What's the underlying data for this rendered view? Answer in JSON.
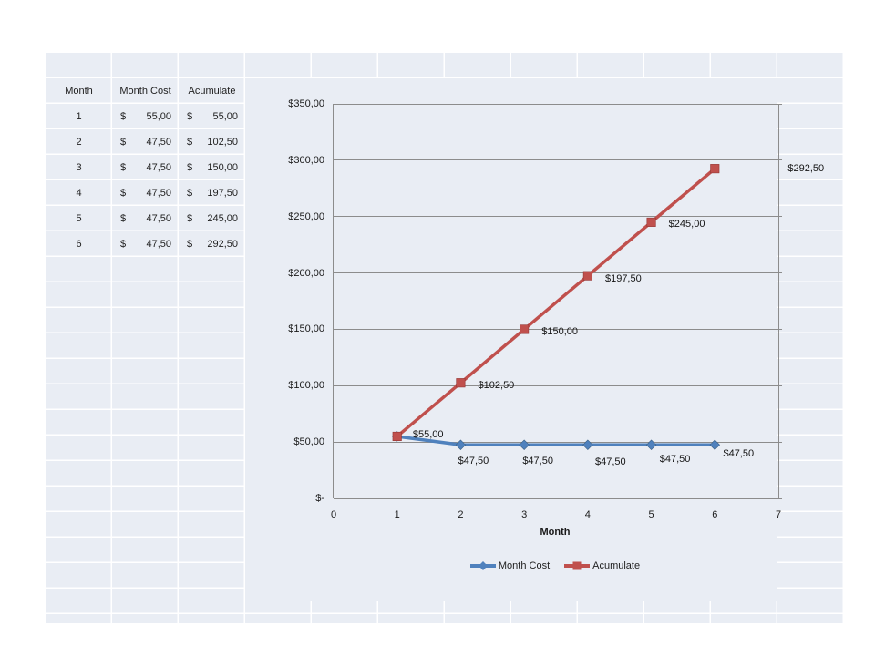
{
  "colors": {
    "sheet_background": "#e9edf4",
    "cell_gridline": "#ffffff",
    "chart_gridline": "#8c8c8c",
    "series_month_cost": "#4f81bd",
    "series_acumulate": "#c0504d",
    "text": "#1f1f1f"
  },
  "table": {
    "headers": [
      "Month",
      "Month Cost",
      "Acumulate"
    ],
    "rows": [
      [
        "1",
        "$",
        "55,00",
        "$",
        "55,00"
      ],
      [
        "2",
        "$",
        "47,50",
        "$",
        "102,50"
      ],
      [
        "3",
        "$",
        "47,50",
        "$",
        "150,00"
      ],
      [
        "4",
        "$",
        "47,50",
        "$",
        "197,50"
      ],
      [
        "5",
        "$",
        "47,50",
        "$",
        "245,00"
      ],
      [
        "6",
        "$",
        "47,50",
        "$",
        "292,50"
      ]
    ]
  },
  "chart_data": {
    "type": "line",
    "title": "",
    "xlabel": "Month",
    "ylabel": "",
    "xlim": [
      0,
      7
    ],
    "ylim": [
      0,
      350
    ],
    "grid": true,
    "legend_position": "bottom",
    "xticks": [
      "0",
      "1",
      "2",
      "3",
      "4",
      "5",
      "6",
      "7"
    ],
    "yticks": [
      {
        "value": 0,
        "label": "$-"
      },
      {
        "value": 50,
        "label": "$50,00"
      },
      {
        "value": 100,
        "label": "$100,00"
      },
      {
        "value": 150,
        "label": "$150,00"
      },
      {
        "value": 200,
        "label": "$200,00"
      },
      {
        "value": 250,
        "label": "$250,00"
      },
      {
        "value": 300,
        "label": "$300,00"
      },
      {
        "value": 350,
        "label": "$350,00"
      }
    ],
    "x": [
      1,
      2,
      3,
      4,
      5,
      6
    ],
    "series": [
      {
        "name": "Month Cost",
        "color": "#4f81bd",
        "marker": "diamond",
        "values": [
          55,
          47.5,
          47.5,
          47.5,
          47.5,
          47.5
        ],
        "point_labels": [
          null,
          "$47,50",
          "$47,50",
          "$47,50",
          "$47,50",
          "$47,50"
        ],
        "label_offsets": [
          null,
          [
            14,
            18
          ],
          [
            15,
            18
          ],
          [
            25,
            19
          ],
          [
            26,
            16
          ],
          [
            26,
            10
          ]
        ]
      },
      {
        "name": "Acumulate",
        "color": "#c0504d",
        "marker": "square",
        "values": [
          55,
          102.5,
          150,
          197.5,
          245,
          292.5
        ],
        "point_labels": [
          "$55,00",
          "$102,50",
          "$150,00",
          "$197,50",
          "$245,00",
          "$292,50"
        ],
        "label_offsets": [
          [
            34,
            -2
          ],
          [
            39,
            3
          ],
          [
            39,
            3
          ],
          [
            39,
            3
          ],
          [
            39,
            2
          ],
          [
            100,
            0
          ]
        ]
      }
    ]
  }
}
